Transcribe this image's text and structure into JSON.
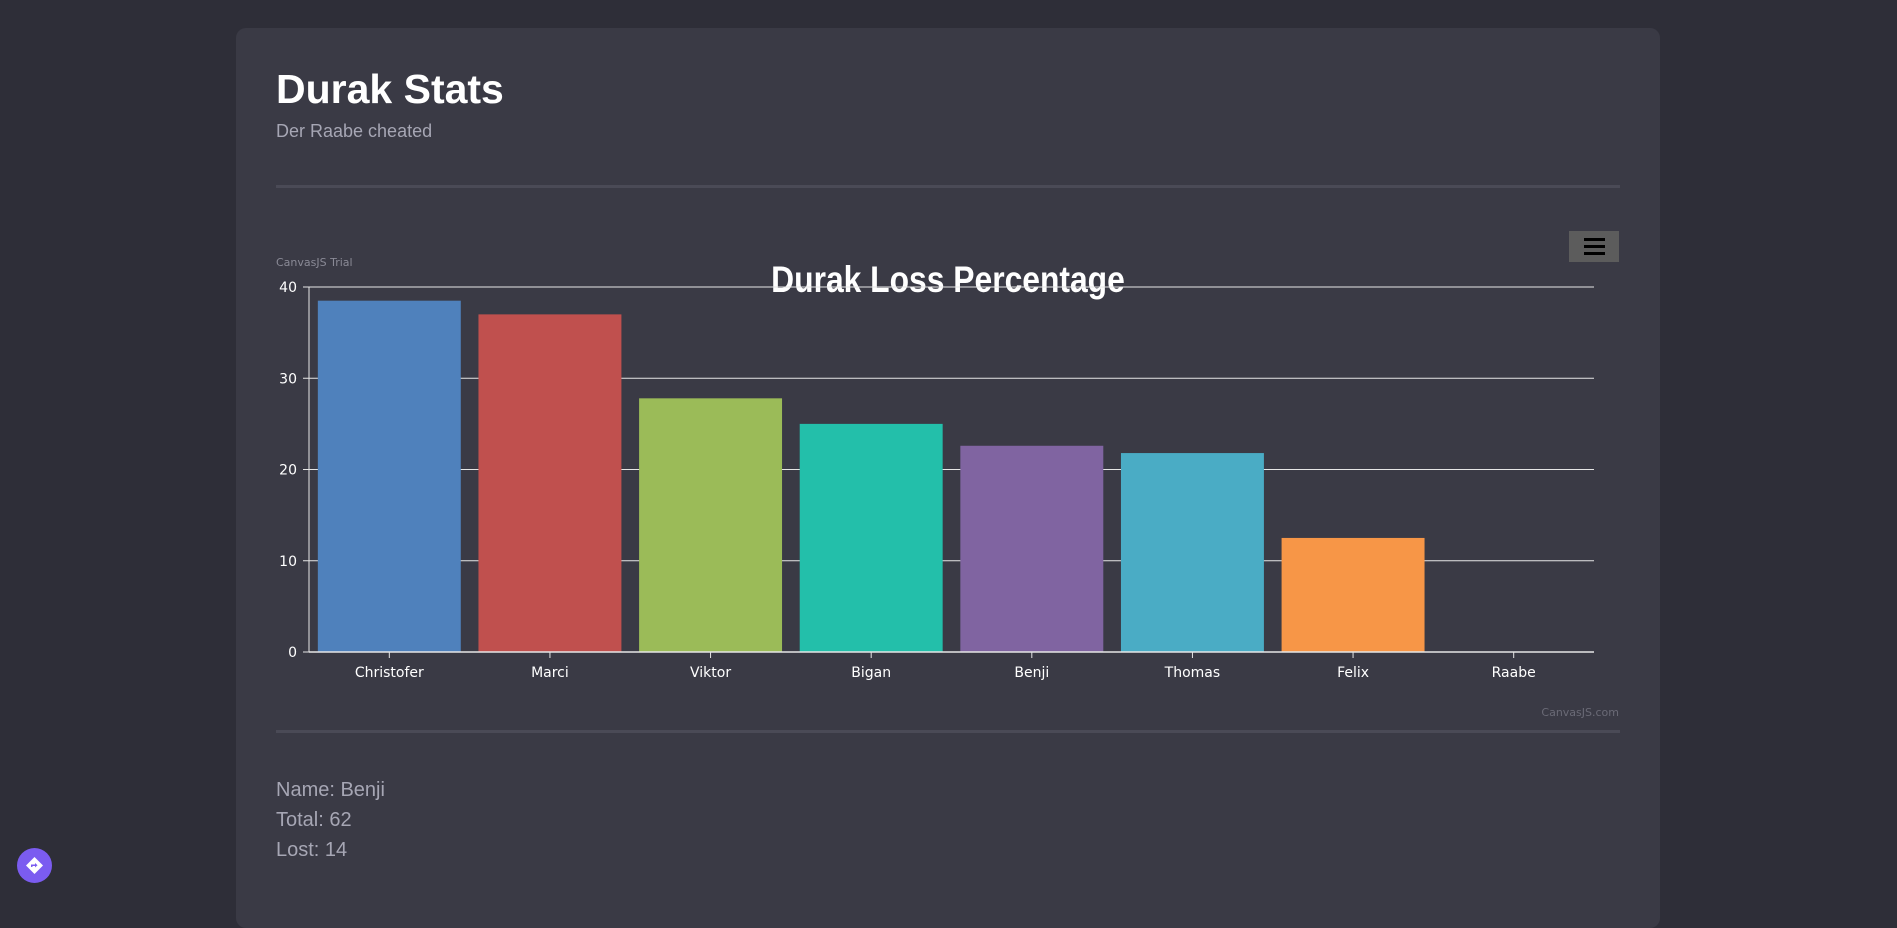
{
  "header": {
    "title": "Durak Stats",
    "subtitle": "Der Raabe cheated"
  },
  "chart_data": {
    "type": "bar",
    "title": "Durak Loss Percentage",
    "trial_label": "CanvasJS Trial",
    "credit": "CanvasJS.com",
    "categories": [
      "Christofer",
      "Marci",
      "Viktor",
      "Bigan",
      "Benji",
      "Thomas",
      "Felix",
      "Raabe"
    ],
    "values": [
      38.5,
      37.0,
      27.8,
      25.0,
      22.6,
      21.8,
      12.5,
      0
    ],
    "colors": [
      "#4f81bc",
      "#c0504e",
      "#9bbb58",
      "#23bfaa",
      "#8064a1",
      "#4aacc5",
      "#f79647",
      "#33558b"
    ],
    "yticks": [
      0,
      10,
      20,
      30,
      40
    ],
    "ylim": [
      0,
      40
    ],
    "xlabel": "",
    "ylabel": "",
    "grid": true,
    "legend": "none"
  },
  "selected": {
    "name_line": "Name: Benji",
    "total_line": "Total: 62",
    "lost_line": "Lost: 14"
  },
  "icons": {
    "menu": "hamburger-icon",
    "fab": "directions-icon"
  }
}
